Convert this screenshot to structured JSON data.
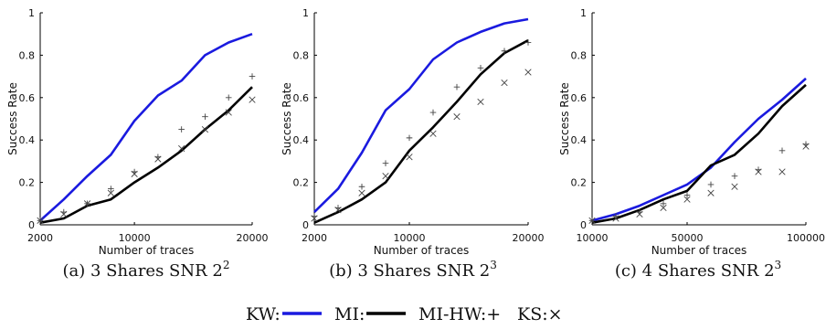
{
  "legend": {
    "kw": "KW:",
    "mi": "MI:",
    "mihw": "MI-HW:+",
    "ks": "KS:×"
  },
  "colors": {
    "kw": "#1a1adf",
    "mi": "#000000",
    "markers": "#444444"
  },
  "chart_data": [
    {
      "type": "line",
      "caption": "(a) 3 Shares SNR 2",
      "caption_sup": "2",
      "xlabel": "Number of traces",
      "ylabel": "Success Rate",
      "xlim": [
        2000,
        20000
      ],
      "ylim": [
        0,
        1
      ],
      "xticks": [
        2000,
        10000,
        20000
      ],
      "yticks": [
        0,
        0.2,
        0.4,
        0.6,
        0.8,
        1
      ],
      "x": [
        2000,
        4000,
        6000,
        8000,
        10000,
        12000,
        14000,
        16000,
        18000,
        20000
      ],
      "series": [
        {
          "name": "KW",
          "style": "line",
          "values": [
            0.02,
            0.12,
            0.23,
            0.33,
            0.49,
            0.61,
            0.68,
            0.8,
            0.86,
            0.9
          ]
        },
        {
          "name": "MI",
          "style": "line",
          "values": [
            0.01,
            0.03,
            0.09,
            0.12,
            0.2,
            0.27,
            0.35,
            0.45,
            0.54,
            0.65
          ]
        },
        {
          "name": "MI-HW",
          "style": "plus",
          "values": [
            0.02,
            0.06,
            0.1,
            0.17,
            0.25,
            0.32,
            0.45,
            0.51,
            0.6,
            0.7
          ]
        },
        {
          "name": "KS",
          "style": "cross",
          "values": [
            0.02,
            0.05,
            0.1,
            0.15,
            0.24,
            0.31,
            0.36,
            0.45,
            0.53,
            0.59
          ]
        }
      ]
    },
    {
      "type": "line",
      "caption": "(b) 3 Shares SNR 2",
      "caption_sup": "3",
      "xlabel": "Number of traces",
      "ylabel": "Success Rate",
      "xlim": [
        2000,
        20000
      ],
      "ylim": [
        0,
        1
      ],
      "xticks": [
        2000,
        10000,
        20000
      ],
      "yticks": [
        0,
        0.2,
        0.4,
        0.6,
        0.8,
        1
      ],
      "x": [
        2000,
        4000,
        6000,
        8000,
        10000,
        12000,
        14000,
        16000,
        18000,
        20000
      ],
      "series": [
        {
          "name": "KW",
          "style": "line",
          "values": [
            0.06,
            0.17,
            0.34,
            0.54,
            0.64,
            0.78,
            0.86,
            0.91,
            0.95,
            0.97
          ]
        },
        {
          "name": "MI",
          "style": "line",
          "values": [
            0.01,
            0.06,
            0.12,
            0.2,
            0.35,
            0.46,
            0.58,
            0.71,
            0.81,
            0.87
          ]
        },
        {
          "name": "MI-HW",
          "style": "plus",
          "values": [
            0.04,
            0.08,
            0.18,
            0.29,
            0.41,
            0.53,
            0.65,
            0.74,
            0.82,
            0.86
          ]
        },
        {
          "name": "KS",
          "style": "cross",
          "values": [
            0.03,
            0.07,
            0.15,
            0.23,
            0.32,
            0.43,
            0.51,
            0.58,
            0.67,
            0.72
          ]
        }
      ]
    },
    {
      "type": "line",
      "caption": "(c) 4 Shares SNR 2",
      "caption_sup": "3",
      "xlabel": "Number of traces",
      "ylabel": "Success Rate",
      "xlim": [
        10000,
        100000
      ],
      "ylim": [
        0,
        1
      ],
      "xticks": [
        10000,
        50000,
        100000
      ],
      "yticks": [
        0,
        0.2,
        0.4,
        0.6,
        0.8,
        1
      ],
      "x": [
        10000,
        20000,
        30000,
        40000,
        50000,
        60000,
        70000,
        80000,
        90000,
        100000
      ],
      "series": [
        {
          "name": "KW",
          "style": "line",
          "values": [
            0.02,
            0.05,
            0.09,
            0.14,
            0.19,
            0.27,
            0.39,
            0.5,
            0.59,
            0.69
          ]
        },
        {
          "name": "MI",
          "style": "line",
          "values": [
            0.01,
            0.03,
            0.07,
            0.12,
            0.16,
            0.28,
            0.33,
            0.43,
            0.56,
            0.66
          ]
        },
        {
          "name": "MI-HW",
          "style": "plus",
          "values": [
            0.02,
            0.04,
            0.06,
            0.1,
            0.14,
            0.19,
            0.23,
            0.26,
            0.35,
            0.38
          ]
        },
        {
          "name": "KS",
          "style": "cross",
          "values": [
            0.02,
            0.03,
            0.05,
            0.08,
            0.12,
            0.15,
            0.18,
            0.25,
            0.25,
            0.37
          ]
        }
      ]
    }
  ]
}
